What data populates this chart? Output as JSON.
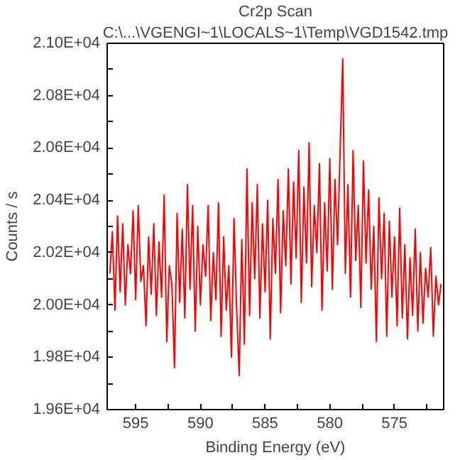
{
  "chart_data": {
    "type": "line",
    "title": "Cr2p Scan",
    "subtitle": "C:\\...\\VGENGI~1\\LOCALS~1\\Temp\\VGD1542.tmp",
    "xlabel": "Binding Energy (eV)",
    "ylabel": "Counts / s",
    "xlim": [
      597.2,
      571.2
    ],
    "ylim": [
      19600,
      21000
    ],
    "xticks": [
      {
        "value": 595,
        "label": "595"
      },
      {
        "value": 592.5,
        "label": null
      },
      {
        "value": 590,
        "label": "590"
      },
      {
        "value": 587.5,
        "label": null
      },
      {
        "value": 585,
        "label": "585"
      },
      {
        "value": 582.5,
        "label": null
      },
      {
        "value": 580,
        "label": "580"
      },
      {
        "value": 577.5,
        "label": null
      },
      {
        "value": 575,
        "label": "575"
      },
      {
        "value": 572.5,
        "label": null
      }
    ],
    "yticks": [
      {
        "value": 19600,
        "label": "1.96E+04"
      },
      {
        "value": 19700,
        "label": null
      },
      {
        "value": 19800,
        "label": "1.98E+04"
      },
      {
        "value": 19900,
        "label": null
      },
      {
        "value": 20000,
        "label": "2.00E+04"
      },
      {
        "value": 20100,
        "label": null
      },
      {
        "value": 20200,
        "label": "2.02E+04"
      },
      {
        "value": 20300,
        "label": null
      },
      {
        "value": 20400,
        "label": "2.04E+04"
      },
      {
        "value": 20500,
        "label": null
      },
      {
        "value": 20600,
        "label": "2.06E+04"
      },
      {
        "value": 20700,
        "label": null
      },
      {
        "value": 20800,
        "label": "2.08E+04"
      },
      {
        "value": 20900,
        "label": null
      },
      {
        "value": 21000,
        "label": "2.10E+04"
      }
    ],
    "grid": false,
    "x": [
      597.0,
      596.8,
      596.6,
      596.4,
      596.2,
      596.0,
      595.8,
      595.6,
      595.4,
      595.2,
      595.0,
      594.8,
      594.6,
      594.4,
      594.2,
      594.0,
      593.8,
      593.6,
      593.4,
      593.2,
      593.0,
      592.8,
      592.6,
      592.4,
      592.2,
      592.0,
      591.8,
      591.6,
      591.4,
      591.2,
      591.0,
      590.8,
      590.6,
      590.4,
      590.2,
      590.0,
      589.8,
      589.6,
      589.4,
      589.2,
      589.0,
      588.8,
      588.6,
      588.4,
      588.2,
      588.0,
      587.8,
      587.6,
      587.4,
      587.2,
      587.0,
      586.8,
      586.6,
      586.4,
      586.2,
      586.0,
      585.8,
      585.6,
      585.4,
      585.2,
      585.0,
      584.8,
      584.6,
      584.4,
      584.2,
      584.0,
      583.8,
      583.6,
      583.4,
      583.2,
      583.0,
      582.8,
      582.6,
      582.4,
      582.2,
      582.0,
      581.8,
      581.6,
      581.4,
      581.2,
      581.0,
      580.8,
      580.6,
      580.4,
      580.2,
      580.0,
      579.8,
      579.6,
      579.4,
      579.2,
      579.0,
      578.8,
      578.6,
      578.4,
      578.2,
      578.0,
      577.8,
      577.6,
      577.4,
      577.2,
      577.0,
      576.8,
      576.6,
      576.4,
      576.2,
      576.0,
      575.8,
      575.6,
      575.4,
      575.2,
      575.0,
      574.8,
      574.6,
      574.4,
      574.2,
      574.0,
      573.8,
      573.6,
      573.4,
      573.2,
      573.0,
      572.8,
      572.6,
      572.4,
      572.2,
      572.0,
      571.8,
      571.6,
      571.4
    ],
    "series": [
      {
        "color": "#ff0000",
        "values": [
          20120,
          20280,
          19980,
          20340,
          20050,
          20310,
          20000,
          20230,
          20120,
          20360,
          20020,
          20380,
          20090,
          20150,
          19920,
          20260,
          20040,
          20310,
          19960,
          20240,
          20030,
          20420,
          19860,
          20150,
          20080,
          19760,
          20350,
          20010,
          20290,
          19950,
          20460,
          20060,
          20380,
          19900,
          20300,
          20000,
          20230,
          20110,
          20380,
          19940,
          20200,
          20020,
          20390,
          19880,
          20260,
          19980,
          20150,
          19800,
          20330,
          19990,
          19730,
          20250,
          19850,
          20520,
          19960,
          20390,
          20100,
          20460,
          19950,
          20310,
          20050,
          20400,
          19870,
          20330,
          20120,
          20480,
          19970,
          20360,
          20150,
          20520,
          20080,
          20470,
          20180,
          20590,
          20010,
          20450,
          20160,
          20620,
          20070,
          20380,
          20200,
          20540,
          19980,
          20390,
          20130,
          20560,
          20060,
          20480,
          20230,
          20590,
          20940,
          20120,
          20460,
          20030,
          20590,
          20170,
          20380,
          19990,
          20550,
          20160,
          20440,
          20060,
          20300,
          19860,
          20410,
          20100,
          20350,
          19880,
          20320,
          20030,
          20260,
          19920,
          20370,
          19950,
          20230,
          19870,
          20180,
          19960,
          20290,
          19900,
          20200,
          19930,
          20140,
          20030,
          20220,
          19880,
          20110,
          20000,
          20080
        ]
      }
    ]
  }
}
